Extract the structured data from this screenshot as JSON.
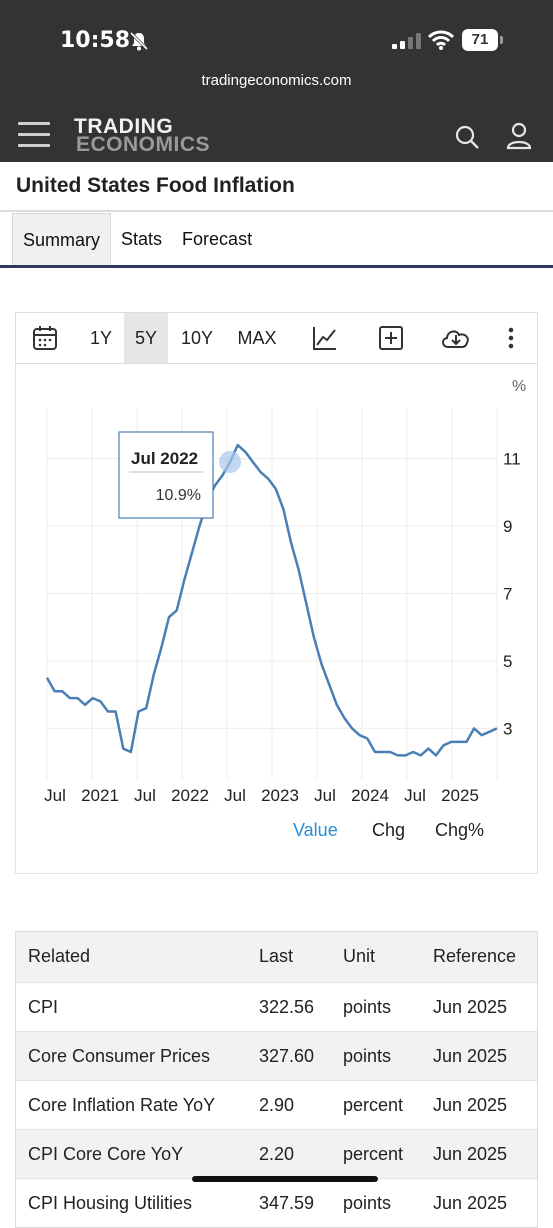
{
  "status_bar": {
    "time": "10:58",
    "battery": "71",
    "url": "tradingeconomics.com"
  },
  "header": {
    "logo_line1": "TRADING",
    "logo_line2": "ECONOMICS"
  },
  "page": {
    "title": "United States Food Inflation"
  },
  "tabs": [
    {
      "label": "Summary",
      "active": true
    },
    {
      "label": "Stats",
      "active": false
    },
    {
      "label": "Forecast",
      "active": false
    }
  ],
  "toolbar": {
    "ranges": [
      "1Y",
      "5Y",
      "10Y",
      "MAX"
    ],
    "active_range": "5Y",
    "icons": [
      "calendar-icon",
      "line-chart-icon",
      "add-icon",
      "download-icon",
      "more-icon"
    ]
  },
  "chart_data": {
    "type": "line",
    "unit_label": "%",
    "x_tick_labels": [
      "Jul",
      "2021",
      "Jul",
      "2022",
      "Jul",
      "2023",
      "Jul",
      "2024",
      "Jul",
      "2025"
    ],
    "y_ticks": [
      3,
      5,
      7,
      9,
      11
    ],
    "ylim": [
      1.5,
      12.5
    ],
    "grid": true,
    "tooltip": {
      "label": "Jul 2022",
      "value": "10.9%"
    },
    "series": [
      {
        "values": [
          4.5,
          4.1,
          4.1,
          3.9,
          3.9,
          3.7,
          3.9,
          3.8,
          3.5,
          3.5,
          2.4,
          2.3,
          3.5,
          3.6,
          4.6,
          5.4,
          6.3,
          6.5,
          7.4,
          8.2,
          9.0,
          9.7,
          10.2,
          10.5,
          10.9,
          11.4,
          11.2,
          10.9,
          10.6,
          10.4,
          10.1,
          9.5,
          8.5,
          7.7,
          6.7,
          5.7,
          4.9,
          4.3,
          3.7,
          3.3,
          3.0,
          2.8,
          2.7,
          2.3,
          2.3,
          2.3,
          2.2,
          2.2,
          2.3,
          2.2,
          2.4,
          2.2,
          2.5,
          2.6,
          2.6,
          2.6,
          3.0,
          2.8,
          2.9,
          3.0
        ]
      }
    ],
    "legend": [
      {
        "label": "Value",
        "active": true,
        "color": "#2a8ed6"
      },
      {
        "label": "Chg",
        "active": false,
        "color": "#222222"
      },
      {
        "label": "Chg%",
        "active": false,
        "color": "#222222"
      }
    ],
    "line_color": "#4a7fb5"
  },
  "related_table": {
    "headers": [
      "Related",
      "Last",
      "Unit",
      "Reference"
    ],
    "rows": [
      [
        "CPI",
        "322.56",
        "points",
        "Jun 2025"
      ],
      [
        "Core Consumer Prices",
        "327.60",
        "points",
        "Jun 2025"
      ],
      [
        "Core Inflation Rate YoY",
        "2.90",
        "percent",
        "Jun 2025"
      ],
      [
        "CPI Core Core YoY",
        "2.20",
        "percent",
        "Jun 2025"
      ],
      [
        "CPI Housing Utilities",
        "347.59",
        "points",
        "Jun 2025"
      ]
    ]
  }
}
